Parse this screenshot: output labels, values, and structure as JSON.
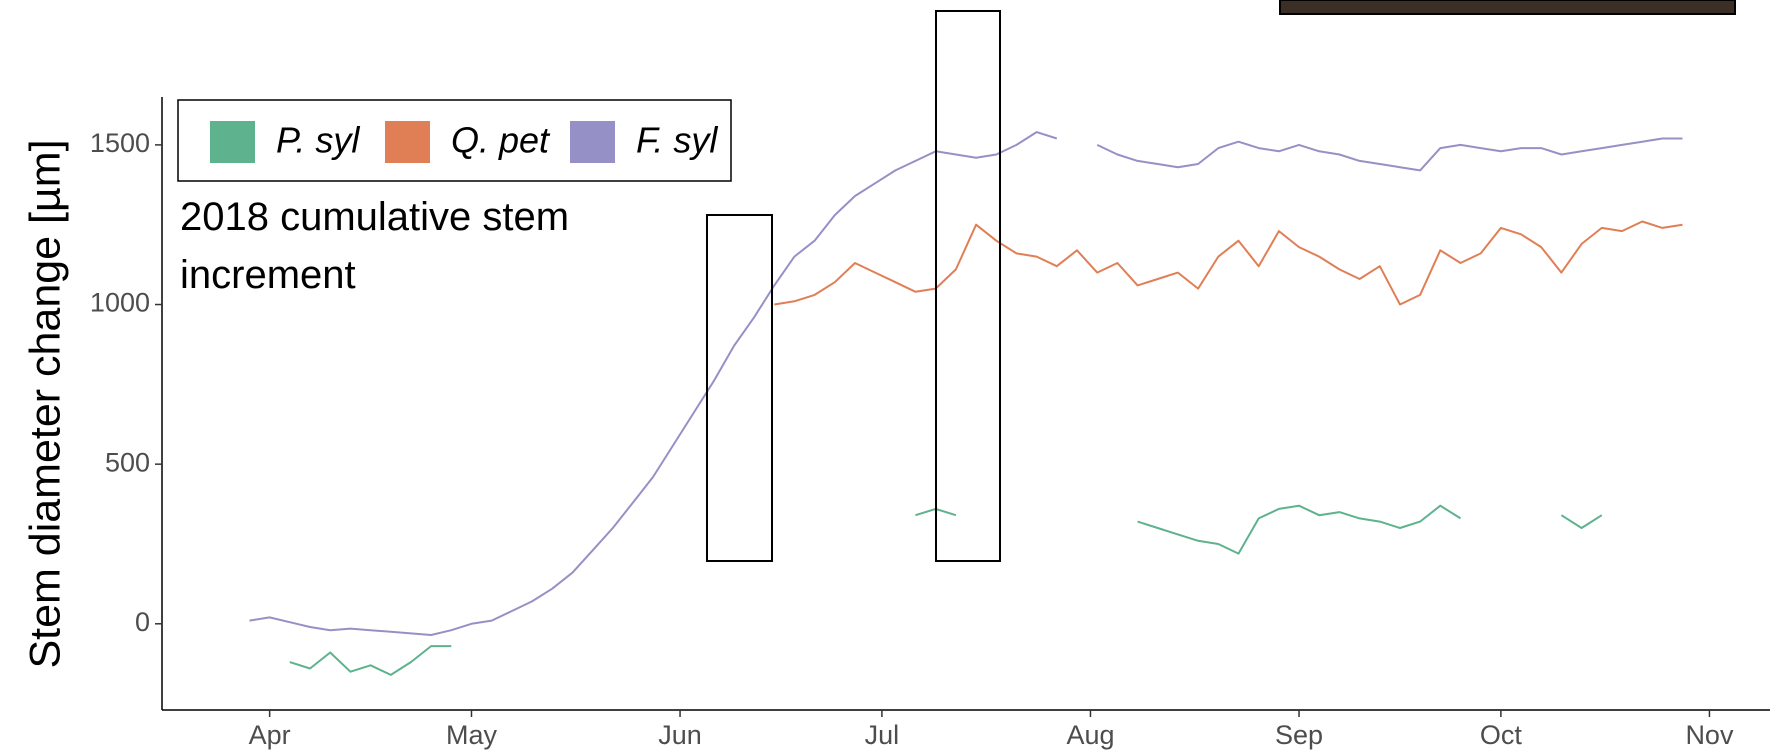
{
  "chart_data": {
    "type": "line",
    "y_label": "Stem diameter change [µm]",
    "annotation": "2018 cumulative stem increment",
    "x": [
      88,
      91,
      94,
      97,
      100,
      103,
      106,
      109,
      112,
      115,
      118,
      121,
      124,
      127,
      130,
      133,
      136,
      139,
      142,
      145,
      148,
      151,
      154,
      157,
      160,
      163,
      166,
      169,
      172,
      175,
      178,
      181,
      184,
      187,
      190,
      193,
      196,
      199,
      202,
      205,
      208,
      211,
      214,
      217,
      220,
      223,
      226,
      229,
      232,
      235,
      238,
      241,
      244,
      247,
      250,
      253,
      256,
      259,
      262,
      265,
      268,
      271,
      274,
      277,
      280,
      283,
      286,
      289,
      292,
      295,
      298,
      301,
      304
    ],
    "series": [
      {
        "name": "P. syl",
        "color": "#5eb28e",
        "values": [
          null,
          null,
          -120,
          -140,
          -90,
          -150,
          -130,
          -160,
          -120,
          -70,
          -70,
          null,
          null,
          null,
          null,
          null,
          null,
          null,
          null,
          null,
          null,
          null,
          null,
          null,
          null,
          null,
          null,
          null,
          null,
          null,
          null,
          null,
          null,
          340,
          360,
          340,
          null,
          null,
          null,
          null,
          null,
          null,
          null,
          null,
          320,
          300,
          280,
          260,
          250,
          220,
          330,
          360,
          370,
          340,
          350,
          330,
          320,
          300,
          320,
          370,
          330,
          null,
          null,
          null,
          null,
          340,
          300,
          340,
          null,
          null,
          null,
          null,
          null
        ]
      },
      {
        "name": "Q. pet",
        "color": "#e07f55",
        "values": [
          null,
          null,
          null,
          null,
          null,
          null,
          null,
          null,
          null,
          null,
          null,
          null,
          null,
          null,
          null,
          null,
          null,
          null,
          null,
          null,
          null,
          null,
          null,
          null,
          null,
          null,
          1000,
          1010,
          1030,
          1070,
          1130,
          1100,
          1070,
          1040,
          1050,
          1110,
          1250,
          1200,
          1160,
          1150,
          1120,
          1170,
          1100,
          1130,
          1060,
          1080,
          1100,
          1050,
          1150,
          1200,
          1120,
          1230,
          1180,
          1150,
          1110,
          1080,
          1120,
          1000,
          1030,
          1170,
          1130,
          1160,
          1240,
          1220,
          1180,
          1100,
          1190,
          1240,
          1230,
          1260,
          1240,
          1250,
          null
        ]
      },
      {
        "name": "F. syl",
        "color": "#9591c6",
        "values": [
          10,
          20,
          5,
          -10,
          -20,
          -15,
          -20,
          -25,
          -30,
          -35,
          -20,
          0,
          10,
          40,
          70,
          110,
          160,
          230,
          300,
          380,
          460,
          560,
          660,
          760,
          870,
          960,
          1060,
          1150,
          1200,
          1280,
          1340,
          1380,
          1420,
          1450,
          1480,
          1470,
          1460,
          1470,
          1500,
          1540,
          1520,
          null,
          1500,
          1470,
          1450,
          1440,
          1430,
          1440,
          1490,
          1510,
          1490,
          1480,
          1500,
          1480,
          1470,
          1450,
          1440,
          1430,
          1420,
          1490,
          1500,
          1490,
          1480,
          1490,
          1490,
          1470,
          1480,
          1490,
          1500,
          1510,
          1520,
          1520,
          null
        ]
      }
    ],
    "xlim": [
      75,
      314
    ],
    "xticks": [
      {
        "value": 91,
        "label": "Apr"
      },
      {
        "value": 121,
        "label": "May"
      },
      {
        "value": 152,
        "label": "Jun"
      },
      {
        "value": 182,
        "label": "Jul"
      },
      {
        "value": 213,
        "label": "Aug"
      },
      {
        "value": 244,
        "label": "Sep"
      },
      {
        "value": 274,
        "label": "Oct"
      },
      {
        "value": 305,
        "label": "Nov"
      }
    ],
    "ylim": [
      -270,
      1650
    ],
    "yticks": [
      0,
      500,
      1000,
      1500
    ],
    "grid": false,
    "legend": "top-left"
  }
}
